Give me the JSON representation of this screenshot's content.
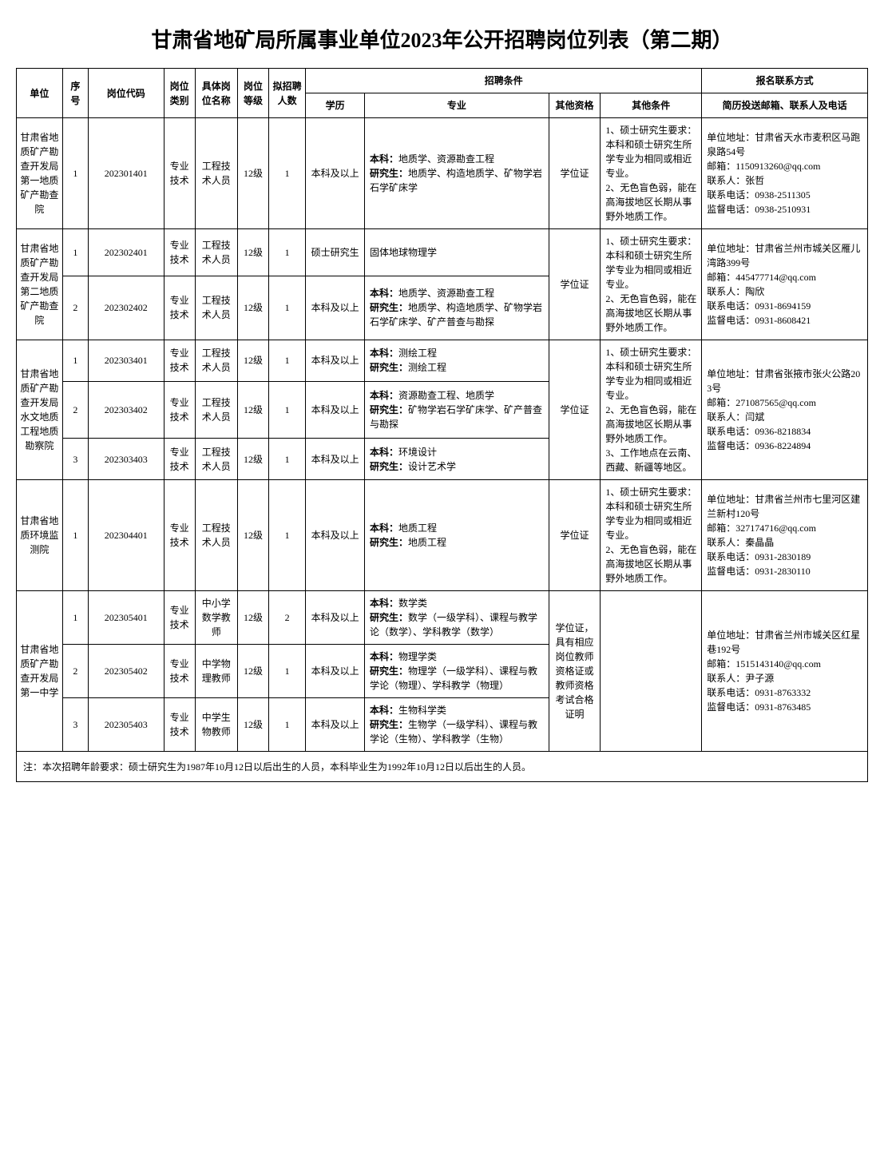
{
  "title": "甘肃省地矿局所属事业单位2023年公开招聘岗位列表（第二期）",
  "headers": {
    "unit": "单位",
    "seq": "序号",
    "code": "岗位代码",
    "cat": "岗位类别",
    "name": "具体岗位名称",
    "level": "岗位等级",
    "count": "拟招聘人数",
    "conditions": "招聘条件",
    "contact_group": "报名联系方式",
    "edu": "学历",
    "major": "专业",
    "qual": "其他资格",
    "other": "其他条件",
    "contact": "简历投送邮箱、联系人及电话"
  },
  "groups": [
    {
      "unit": "甘肃省地质矿产勘查开发局第一地质矿产勘查院",
      "qual": "学位证",
      "other": "1、硕士研究生要求：本科和硕士研究生所学专业为相同或相近专业。\n2、无色盲色弱，能在高海拔地区长期从事野外地质工作。",
      "contact": "单位地址：甘肃省天水市麦积区马跑泉路54号\n邮箱：1150913260@qq.com\n联系人：张哲\n联系电话：0938-2511305\n监督电话：0938-2510931",
      "rows": [
        {
          "seq": "1",
          "code": "202301401",
          "cat": "专业技术",
          "name": "工程技术人员",
          "level": "12级",
          "count": "1",
          "edu": "本科及以上",
          "major_b": "本科：",
          "major_b_t": "地质学、资源勘查工程",
          "major_g": "研究生：",
          "major_g_t": "地质学、构造地质学、矿物学岩石学矿床学"
        }
      ]
    },
    {
      "unit": "甘肃省地质矿产勘查开发局第二地质矿产勘查院",
      "qual": "学位证",
      "other": "1、硕士研究生要求：本科和硕士研究生所学专业为相同或相近专业。\n2、无色盲色弱，能在高海拔地区长期从事野外地质工作。",
      "contact": "单位地址：甘肃省兰州市城关区雁儿湾路399号\n邮箱：445477714@qq.com\n联系人：陶欣\n联系电话：0931-8694159\n监督电话：0931-8608421",
      "rows": [
        {
          "seq": "1",
          "code": "202302401",
          "cat": "专业技术",
          "name": "工程技术人员",
          "level": "12级",
          "count": "1",
          "edu": "硕士研究生",
          "major_plain": "固体地球物理学"
        },
        {
          "seq": "2",
          "code": "202302402",
          "cat": "专业技术",
          "name": "工程技术人员",
          "level": "12级",
          "count": "1",
          "edu": "本科及以上",
          "major_b": "本科：",
          "major_b_t": "地质学、资源勘查工程",
          "major_g": "研究生：",
          "major_g_t": "地质学、构造地质学、矿物学岩石学矿床学、矿产普查与勘探"
        }
      ]
    },
    {
      "unit": "甘肃省地质矿产勘查开发局水文地质工程地质勘察院",
      "qual": "学位证",
      "other": "1、硕士研究生要求：本科和硕士研究生所学专业为相同或相近专业。\n2、无色盲色弱，能在高海拔地区长期从事野外地质工作。\n3、工作地点在云南、西藏、新疆等地区。",
      "contact": "单位地址：甘肃省张掖市张火公路203号\n邮箱：271087565@qq.com\n联系人：闫斌\n联系电话：0936-8218834\n监督电话：0936-8224894",
      "rows": [
        {
          "seq": "1",
          "code": "202303401",
          "cat": "专业技术",
          "name": "工程技术人员",
          "level": "12级",
          "count": "1",
          "edu": "本科及以上",
          "major_b": "本科：",
          "major_b_t": "测绘工程",
          "major_g": "研究生：",
          "major_g_t": "测绘工程"
        },
        {
          "seq": "2",
          "code": "202303402",
          "cat": "专业技术",
          "name": "工程技术人员",
          "level": "12级",
          "count": "1",
          "edu": "本科及以上",
          "major_b": "本科：",
          "major_b_t": "资源勘查工程、地质学",
          "major_g": "研究生：",
          "major_g_t": "矿物学岩石学矿床学、矿产普查与勘探"
        },
        {
          "seq": "3",
          "code": "202303403",
          "cat": "专业技术",
          "name": "工程技术人员",
          "level": "12级",
          "count": "1",
          "edu": "本科及以上",
          "major_b": "本科：",
          "major_b_t": "环境设计",
          "major_g": "研究生：",
          "major_g_t": "设计艺术学"
        }
      ]
    },
    {
      "unit": "甘肃省地质环境监测院",
      "qual": "学位证",
      "other": "1、硕士研究生要求：本科和硕士研究生所学专业为相同或相近专业。\n2、无色盲色弱，能在高海拔地区长期从事野外地质工作。",
      "contact": "单位地址：甘肃省兰州市七里河区建兰新村120号\n邮箱：327174716@qq.com\n联系人：秦晶晶\n联系电话：0931-2830189\n监督电话：0931-2830110",
      "rows": [
        {
          "seq": "1",
          "code": "202304401",
          "cat": "专业技术",
          "name": "工程技术人员",
          "level": "12级",
          "count": "1",
          "edu": "本科及以上",
          "major_b": "本科：",
          "major_b_t": "地质工程",
          "major_g": "研究生：",
          "major_g_t": "地质工程"
        }
      ]
    },
    {
      "unit": "甘肃省地质矿产勘查开发局第一中学",
      "qual": "学位证，具有相应岗位教师资格证或教师资格考试合格证明",
      "other": "",
      "contact": "单位地址：甘肃省兰州市城关区红星巷192号\n邮箱：1515143140@qq.com\n联系人：尹子源\n联系电话：0931-8763332\n监督电话：0931-8763485",
      "rows": [
        {
          "seq": "1",
          "code": "202305401",
          "cat": "专业技术",
          "name": "中小学数学教师",
          "level": "12级",
          "count": "2",
          "edu": "本科及以上",
          "major_b": "本科：",
          "major_b_t": "数学类",
          "major_g": "研究生：",
          "major_g_t": "数学（一级学科）、课程与教学论（数学）、学科教学（数学）"
        },
        {
          "seq": "2",
          "code": "202305402",
          "cat": "专业技术",
          "name": "中学物理教师",
          "level": "12级",
          "count": "1",
          "edu": "本科及以上",
          "major_b": "本科：",
          "major_b_t": "物理学类",
          "major_g": "研究生：",
          "major_g_t": "物理学（一级学科）、课程与教学论（物理）、学科教学（物理）"
        },
        {
          "seq": "3",
          "code": "202305403",
          "cat": "专业技术",
          "name": "中学生物教师",
          "level": "12级",
          "count": "1",
          "edu": "本科及以上",
          "major_b": "本科：",
          "major_b_t": "生物科学类",
          "major_g": "研究生：",
          "major_g_t": "生物学（一级学科）、课程与教学论（生物）、学科教学（生物）"
        }
      ]
    }
  ],
  "footnote": "注：本次招聘年龄要求：硕士研究生为1987年10月12日以后出生的人员，本科毕业生为1992年10月12日以后出生的人员。"
}
